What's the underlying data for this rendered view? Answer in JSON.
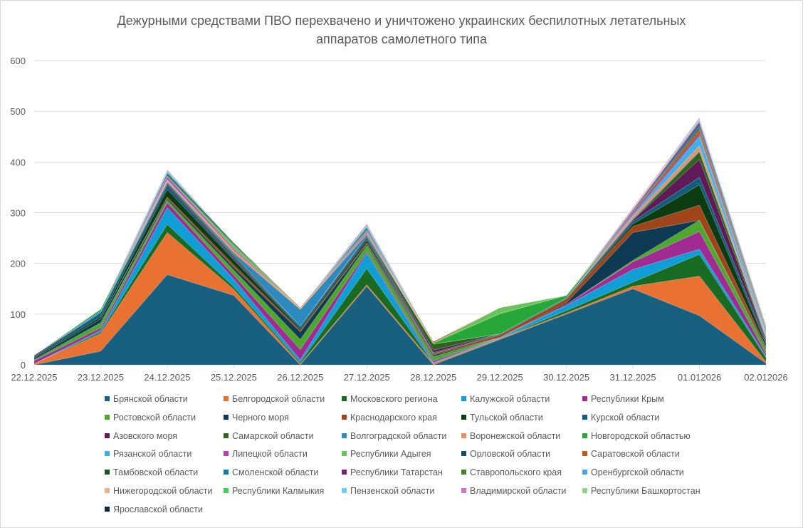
{
  "chart_data": {
    "type": "area",
    "stacked": true,
    "title": "Дежурными средствами ПВО перехвачено и уничтожено украинских беспилотных летательных аппаратов самолетного типа",
    "title_lines": [
      "Дежурными средствами ПВО перехвачено и уничтожено украинских беспилотных летательных",
      "аппаратов самолетного типа"
    ],
    "xlabel": "",
    "ylabel": "",
    "ylim": [
      0,
      600
    ],
    "yticks": [
      0,
      100,
      200,
      300,
      400,
      500,
      600
    ],
    "grid": true,
    "legend_position": "bottom",
    "categories": [
      "22.12.2025",
      "23.12.2025",
      "24.12.2025",
      "25.12.2025",
      "26.12.2025",
      "27.12.2025",
      "28.12.2025",
      "29.12.2025",
      "30.12.2025",
      "31.12.2025",
      "01.012026",
      "02.012026"
    ],
    "series": [
      {
        "name": "Брянской области",
        "color": "#18607f",
        "values": [
          0,
          27,
          178,
          137,
          0,
          155,
          0,
          50,
          100,
          150,
          97,
          3
        ]
      },
      {
        "name": "Белгородской области",
        "color": "#e97132",
        "values": [
          2,
          35,
          83,
          12,
          2,
          3,
          3,
          2,
          2,
          5,
          78,
          3
        ]
      },
      {
        "name": "Московского региона",
        "color": "#196b24",
        "values": [
          0,
          3,
          16,
          5,
          3,
          32,
          0,
          0,
          5,
          8,
          43,
          8
        ]
      },
      {
        "name": "Калужской области",
        "color": "#0f9ed5",
        "values": [
          0,
          3,
          33,
          15,
          5,
          30,
          2,
          2,
          10,
          25,
          10,
          3
        ]
      },
      {
        "name": "Республики Крым",
        "color": "#a02b93",
        "values": [
          6,
          5,
          10,
          8,
          20,
          3,
          3,
          0,
          2,
          15,
          35,
          5
        ]
      },
      {
        "name": "Ростовской области",
        "color": "#4ea72e",
        "values": [
          2,
          10,
          5,
          10,
          20,
          12,
          8,
          0,
          0,
          3,
          22,
          8
        ]
      },
      {
        "name": "Черного моря",
        "color": "#0e3a54",
        "values": [
          3,
          8,
          3,
          5,
          15,
          3,
          3,
          0,
          3,
          55,
          0,
          3
        ]
      },
      {
        "name": "Краснодарского края",
        "color": "#a0441a",
        "values": [
          0,
          0,
          3,
          5,
          3,
          3,
          3,
          5,
          8,
          12,
          30,
          3
        ]
      },
      {
        "name": "Тульской области",
        "color": "#0d3b12",
        "values": [
          2,
          4,
          15,
          10,
          3,
          5,
          0,
          0,
          0,
          5,
          40,
          5
        ]
      },
      {
        "name": "Курской области",
        "color": "#0f5f7c",
        "values": [
          2,
          8,
          8,
          3,
          5,
          5,
          2,
          2,
          2,
          5,
          15,
          5
        ]
      },
      {
        "name": "Азовского моря",
        "color": "#601a58",
        "values": [
          2,
          0,
          3,
          3,
          0,
          2,
          5,
          0,
          0,
          3,
          35,
          3
        ]
      },
      {
        "name": "Самарской области",
        "color": "#2e641c",
        "values": [
          0,
          0,
          2,
          3,
          0,
          2,
          12,
          0,
          0,
          0,
          15,
          3
        ]
      },
      {
        "name": "Волгоградской области",
        "color": "#2d8abf",
        "values": [
          0,
          3,
          2,
          5,
          33,
          3,
          0,
          0,
          0,
          2,
          2,
          3
        ]
      },
      {
        "name": "Воронежской области",
        "color": "#ec8f5e",
        "values": [
          0,
          0,
          3,
          5,
          2,
          2,
          0,
          0,
          0,
          5,
          10,
          3
        ]
      },
      {
        "name": "Новгородской областью",
        "color": "#27a63a",
        "values": [
          0,
          4,
          0,
          0,
          0,
          0,
          2,
          40,
          5,
          0,
          0,
          0
        ]
      },
      {
        "name": "Рязанской области",
        "color": "#3bb3e8",
        "values": [
          0,
          0,
          2,
          0,
          0,
          0,
          0,
          0,
          0,
          2,
          18,
          3
        ]
      },
      {
        "name": "Липецкой области",
        "color": "#c03bb4",
        "values": [
          0,
          0,
          5,
          3,
          0,
          3,
          0,
          0,
          0,
          3,
          3,
          2
        ]
      },
      {
        "name": "Республики Адыгея",
        "color": "#6bc25a",
        "values": [
          0,
          0,
          2,
          8,
          0,
          2,
          0,
          12,
          0,
          0,
          0,
          0
        ]
      },
      {
        "name": "Орловской области",
        "color": "#124d6b",
        "values": [
          0,
          0,
          3,
          2,
          0,
          2,
          0,
          0,
          0,
          2,
          3,
          2
        ]
      },
      {
        "name": "Саратовской области",
        "color": "#c9541c",
        "values": [
          0,
          0,
          0,
          0,
          2,
          0,
          3,
          0,
          0,
          2,
          8,
          2
        ]
      },
      {
        "name": "Тамбовской области",
        "color": "#145a1d",
        "values": [
          0,
          0,
          2,
          2,
          0,
          2,
          0,
          0,
          0,
          0,
          3,
          2
        ]
      },
      {
        "name": "Смоленской области",
        "color": "#137ea6",
        "values": [
          0,
          0,
          2,
          0,
          0,
          3,
          0,
          0,
          0,
          2,
          5,
          2
        ]
      },
      {
        "name": "Республики Татарстан",
        "color": "#7e2275",
        "values": [
          0,
          0,
          0,
          0,
          0,
          0,
          0,
          0,
          0,
          2,
          5,
          2
        ]
      },
      {
        "name": "Ставропольского края",
        "color": "#3c852b",
        "values": [
          0,
          0,
          0,
          0,
          0,
          0,
          0,
          0,
          0,
          0,
          2,
          2
        ]
      },
      {
        "name": "Оренбургской области",
        "color": "#48a9e0",
        "values": [
          0,
          0,
          0,
          0,
          0,
          0,
          0,
          0,
          0,
          0,
          3,
          2
        ]
      },
      {
        "name": "Нижегородской области",
        "color": "#f0b08f",
        "values": [
          0,
          0,
          0,
          0,
          0,
          0,
          0,
          0,
          0,
          2,
          2,
          2
        ]
      },
      {
        "name": "Республики Калмыкия",
        "color": "#3fd35c",
        "values": [
          0,
          0,
          0,
          0,
          0,
          0,
          0,
          0,
          0,
          0,
          0,
          0
        ]
      },
      {
        "name": "Пензенской области",
        "color": "#6fcdf0",
        "values": [
          0,
          0,
          3,
          0,
          0,
          3,
          0,
          0,
          0,
          0,
          2,
          0
        ]
      },
      {
        "name": "Владимирской области",
        "color": "#d472cc",
        "values": [
          0,
          0,
          2,
          0,
          0,
          3,
          0,
          0,
          0,
          2,
          2,
          0
        ]
      },
      {
        "name": "Республики Башкортостан",
        "color": "#8fd47f",
        "values": [
          0,
          0,
          0,
          0,
          0,
          0,
          0,
          0,
          0,
          0,
          0,
          2
        ]
      },
      {
        "name": "Ярославской области",
        "color": "#0b2a3d",
        "values": [
          0,
          0,
          0,
          0,
          0,
          0,
          0,
          0,
          0,
          0,
          0,
          0
        ]
      }
    ]
  }
}
